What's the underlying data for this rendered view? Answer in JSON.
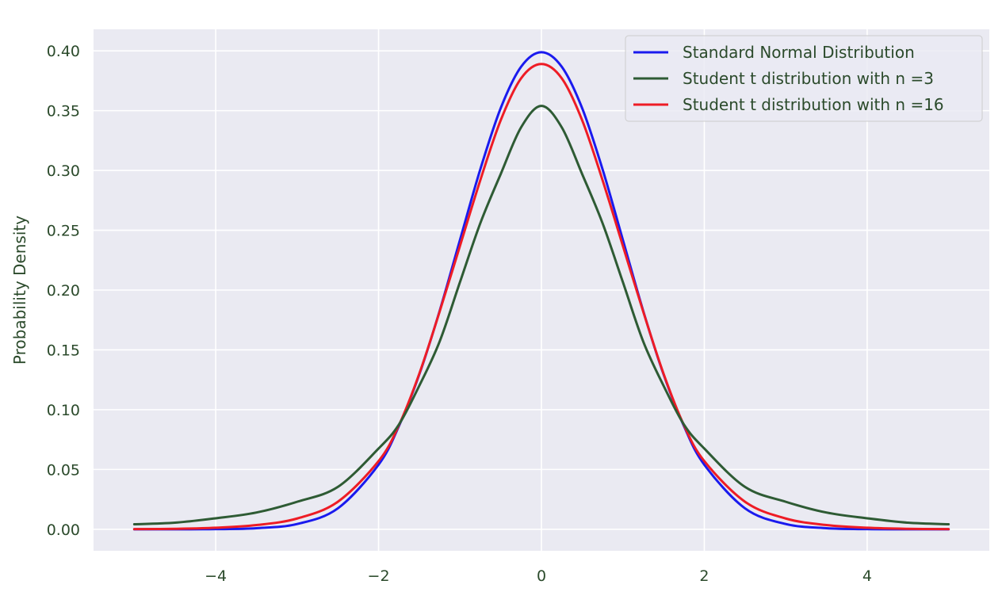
{
  "chart_data": {
    "type": "line",
    "title": "",
    "xlabel": "",
    "ylabel": "Probability Density",
    "xlim": [
      -5.5,
      5.5
    ],
    "ylim": [
      -0.018,
      0.418
    ],
    "x_ticks": [
      -4,
      -2,
      0,
      2,
      4
    ],
    "x_tick_labels": [
      "−4",
      "−2",
      "0",
      "2",
      "4"
    ],
    "y_ticks": [
      0.0,
      0.05,
      0.1,
      0.15,
      0.2,
      0.25,
      0.3,
      0.35,
      0.4
    ],
    "y_tick_labels": [
      "0.00",
      "0.05",
      "0.10",
      "0.15",
      "0.20",
      "0.25",
      "0.30",
      "0.35",
      "0.40"
    ],
    "grid": true,
    "legend_position": "top-right",
    "x": [
      -5.0,
      -4.5,
      -4.0,
      -3.5,
      -3.0,
      -2.5,
      -2.0,
      -1.75,
      -1.5,
      -1.25,
      -1.0,
      -0.75,
      -0.5,
      -0.25,
      0.0,
      0.25,
      0.5,
      0.75,
      1.0,
      1.25,
      1.5,
      1.75,
      2.0,
      2.5,
      3.0,
      3.5,
      4.0,
      4.5,
      5.0
    ],
    "series": [
      {
        "name": "Standard Normal Distribution",
        "color": "#1a1aee",
        "values": [
          0.0,
          0.0,
          0.0001,
          0.0009,
          0.0044,
          0.0175,
          0.054,
          0.0863,
          0.1295,
          0.1826,
          0.242,
          0.3011,
          0.3521,
          0.3867,
          0.3989,
          0.3867,
          0.3521,
          0.3011,
          0.242,
          0.1826,
          0.1295,
          0.0863,
          0.054,
          0.0175,
          0.0044,
          0.0009,
          0.0001,
          0.0,
          0.0
        ]
      },
      {
        "name": "Student t distribution with n =3",
        "color": "#2e5b34",
        "values": [
          0.0042,
          0.0055,
          0.0092,
          0.014,
          0.023,
          0.0354,
          0.0675,
          0.0876,
          0.12,
          0.157,
          0.2067,
          0.256,
          0.297,
          0.336,
          0.354,
          0.336,
          0.297,
          0.256,
          0.2067,
          0.157,
          0.12,
          0.0876,
          0.0675,
          0.0354,
          0.023,
          0.014,
          0.0092,
          0.0055,
          0.0042
        ]
      },
      {
        "name": "Student t distribution with n =16",
        "color": "#ee1c25",
        "values": [
          0.0001,
          0.0004,
          0.0013,
          0.0035,
          0.009,
          0.023,
          0.057,
          0.087,
          0.13,
          0.182,
          0.237,
          0.292,
          0.342,
          0.377,
          0.389,
          0.377,
          0.342,
          0.292,
          0.237,
          0.182,
          0.13,
          0.087,
          0.057,
          0.023,
          0.009,
          0.0035,
          0.0013,
          0.0004,
          0.0001
        ]
      }
    ]
  },
  "colors": {
    "plot_background": "#eaeaf2",
    "grid": "#ffffff",
    "text": "#2b4a2b"
  }
}
